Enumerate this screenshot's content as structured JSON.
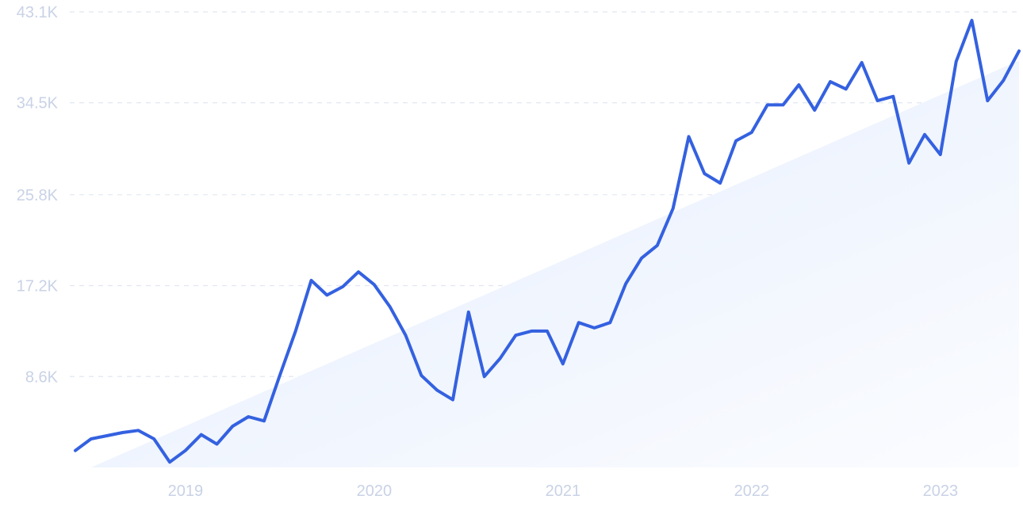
{
  "chart_data": {
    "type": "line",
    "title": "",
    "xlabel": "",
    "ylabel": "",
    "ylim": [
      0,
      43100
    ],
    "y_ticks": [
      "8.6K",
      "17.2K",
      "25.8K",
      "34.5K",
      "43.1K"
    ],
    "y_tick_values": [
      8600,
      17200,
      25800,
      34500,
      43100
    ],
    "x_ticks": [
      "2019",
      "2020",
      "2021",
      "2022",
      "2023"
    ],
    "x_tick_values": [
      "2019-01",
      "2020-01",
      "2021-01",
      "2022-01",
      "2023-01"
    ],
    "grid": true,
    "trend_area": {
      "start": [
        "2018-07",
        0
      ],
      "end": [
        "2023-06",
        38500
      ]
    },
    "colors": {
      "line": "#3461e0",
      "trend_fill": "#e8f0fc",
      "grid": "#e1e7f2",
      "tick_text": "#c9d2e6"
    },
    "series": [
      {
        "x": [
          "2018-06",
          "2018-07",
          "2018-08",
          "2018-09",
          "2018-10",
          "2018-11",
          "2018-12",
          "2019-01",
          "2019-02",
          "2019-03",
          "2019-04",
          "2019-05",
          "2019-06",
          "2019-07",
          "2019-08",
          "2019-09",
          "2019-10",
          "2019-11",
          "2019-12",
          "2020-01",
          "2020-02",
          "2020-03",
          "2020-04",
          "2020-05",
          "2020-06",
          "2020-07",
          "2020-08",
          "2020-09",
          "2020-10",
          "2020-11",
          "2020-12",
          "2021-01",
          "2021-02",
          "2021-03",
          "2021-04",
          "2021-05",
          "2021-06",
          "2021-07",
          "2021-08",
          "2021-09",
          "2021-10",
          "2021-11",
          "2021-12",
          "2022-01",
          "2022-02",
          "2022-03",
          "2022-04",
          "2022-05",
          "2022-06",
          "2022-07",
          "2022-08",
          "2022-09",
          "2022-10",
          "2022-11",
          "2022-12",
          "2023-01",
          "2023-02",
          "2023-03",
          "2023-04",
          "2023-05",
          "2023-06"
        ],
        "values": [
          1600,
          2700,
          3000,
          3300,
          3500,
          2700,
          500,
          1600,
          3100,
          2200,
          3900,
          4800,
          4400,
          8700,
          12900,
          17700,
          16300,
          17100,
          18500,
          17300,
          15200,
          12500,
          8700,
          7300,
          6400,
          14700,
          8600,
          10300,
          12500,
          12900,
          12900,
          9800,
          13700,
          13200,
          13700,
          17400,
          19800,
          21000,
          24500,
          31300,
          27800,
          26900,
          30900,
          31700,
          34300,
          34300,
          36200,
          33800,
          36500,
          35800,
          38300,
          34700,
          35100,
          28800,
          31500,
          29600,
          38400,
          42300,
          34700,
          36600,
          39400
        ]
      }
    ]
  }
}
